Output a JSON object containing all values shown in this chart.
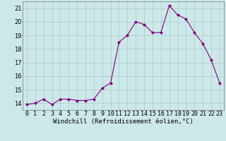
{
  "hours": [
    0,
    1,
    2,
    3,
    4,
    5,
    6,
    7,
    8,
    9,
    10,
    11,
    12,
    13,
    14,
    15,
    16,
    17,
    18,
    19,
    20,
    21,
    22,
    23
  ],
  "values": [
    13.9,
    14.0,
    14.3,
    13.9,
    14.3,
    14.3,
    14.2,
    14.2,
    14.3,
    15.1,
    15.5,
    18.5,
    19.0,
    20.0,
    19.8,
    19.2,
    19.2,
    21.2,
    20.5,
    20.2,
    19.2,
    18.4,
    17.2,
    15.5
  ],
  "line_color": "#800080",
  "marker": "D",
  "marker_size": 2,
  "bg_color": "#cce8e8",
  "grid_color": "#aacaca",
  "xlabel": "Windchill (Refroidissement éolien,°C)",
  "ylim": [
    13.5,
    21.5
  ],
  "xlim": [
    -0.5,
    23.5
  ],
  "yticks": [
    14,
    15,
    16,
    17,
    18,
    19,
    20,
    21
  ],
  "xtick_labels": [
    "0",
    "1",
    "2",
    "3",
    "4",
    "5",
    "6",
    "7",
    "8",
    "9",
    "10",
    "11",
    "12",
    "13",
    "14",
    "15",
    "16",
    "17",
    "18",
    "19",
    "20",
    "21",
    "22",
    "23"
  ],
  "axis_fontsize": 6.5,
  "tick_fontsize": 6.0
}
